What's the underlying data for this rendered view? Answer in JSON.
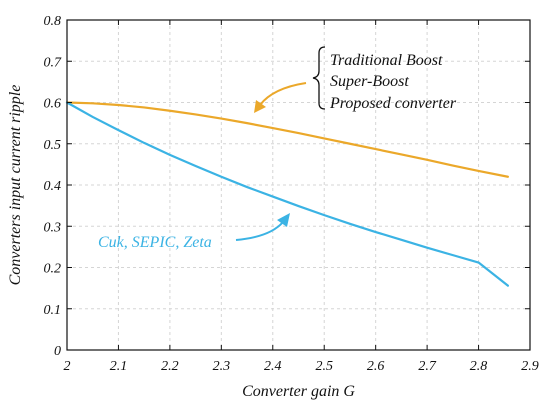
{
  "chart_data": {
    "type": "line",
    "xlabel": "Converter gain G",
    "ylabel": "Converters input current ripple",
    "xlim": [
      2,
      2.9
    ],
    "ylim": [
      0,
      0.8
    ],
    "xticks": [
      "2",
      "2.1",
      "2.2",
      "2.3",
      "2.4",
      "2.5",
      "2.6",
      "2.7",
      "2.8",
      "2.9"
    ],
    "yticks": [
      "0",
      "0.1",
      "0.2",
      "0.3",
      "0.4",
      "0.5",
      "0.6",
      "0.7",
      "0.8"
    ],
    "grid": true,
    "series": [
      {
        "color": "#EBA82A",
        "x": [
          2.0,
          2.05,
          2.1,
          2.15,
          2.2,
          2.25,
          2.3,
          2.35,
          2.4,
          2.45,
          2.5,
          2.55,
          2.6,
          2.65,
          2.7,
          2.75,
          2.8,
          2.857
        ],
        "y": [
          0.6,
          0.598,
          0.594,
          0.588,
          0.58,
          0.571,
          0.561,
          0.55,
          0.538,
          0.526,
          0.513,
          0.5,
          0.487,
          0.474,
          0.461,
          0.447,
          0.434,
          0.42
        ]
      },
      {
        "color": "#3BB3E4",
        "x": [
          2.0,
          2.05,
          2.1,
          2.15,
          2.2,
          2.25,
          2.3,
          2.35,
          2.4,
          2.45,
          2.5,
          2.55,
          2.6,
          2.65,
          2.7,
          2.75,
          2.8,
          2.857
        ],
        "y": [
          0.6,
          0.565,
          0.533,
          0.502,
          0.473,
          0.446,
          0.42,
          0.395,
          0.372,
          0.349,
          0.327,
          0.306,
          0.286,
          0.267,
          0.248,
          0.23,
          0.212,
          0.156
        ]
      }
    ],
    "annotations": {
      "top_group": [
        "Traditional Boost",
        "Super-Boost",
        "Proposed converter"
      ],
      "bottom_label": "Cuk, SEPIC, Zeta"
    },
    "colors": {
      "orange": "#EBA82A",
      "blue": "#3BB3E4",
      "grid": "#D5D5D5",
      "axis": "#111111"
    }
  }
}
